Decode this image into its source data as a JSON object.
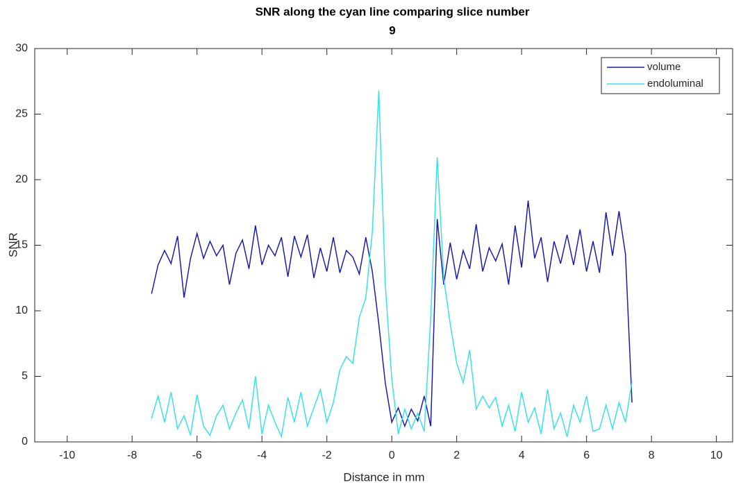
{
  "chart_data": {
    "type": "line",
    "title": [
      "SNR along the cyan line comparing slice number",
      "9"
    ],
    "xlabel": "Distance in mm",
    "ylabel": "SNR",
    "xlim": [
      -11,
      10.5
    ],
    "ylim": [
      0,
      30
    ],
    "xticks": [
      -10,
      -8,
      -6,
      -4,
      -2,
      0,
      2,
      4,
      6,
      8,
      10
    ],
    "yticks": [
      0,
      5,
      10,
      15,
      20,
      25,
      30
    ],
    "grid": false,
    "legend": "northeast",
    "x": [
      -7.4,
      -7.2,
      -7.0,
      -6.8,
      -6.6,
      -6.4,
      -6.2,
      -6.0,
      -5.8,
      -5.6,
      -5.4,
      -5.2,
      -5.0,
      -4.8,
      -4.6,
      -4.4,
      -4.2,
      -4.0,
      -3.8,
      -3.6,
      -3.4,
      -3.2,
      -3.0,
      -2.8,
      -2.6,
      -2.4,
      -2.2,
      -2.0,
      -1.8,
      -1.6,
      -1.4,
      -1.2,
      -1.0,
      -0.8,
      -0.6,
      -0.4,
      -0.2,
      0,
      0.2,
      0.4,
      0.6,
      0.8,
      1.0,
      1.2,
      1.4,
      1.6,
      1.8,
      2.0,
      2.2,
      2.4,
      2.6,
      2.8,
      3.0,
      3.2,
      3.4,
      3.6,
      3.8,
      4.0,
      4.2,
      4.4,
      4.6,
      4.8,
      5.0,
      5.2,
      5.4,
      5.6,
      5.8,
      6.0,
      6.2,
      6.4,
      6.6,
      6.8,
      7.0,
      7.2,
      7.4
    ],
    "series": [
      {
        "name": "volume",
        "color": "#1c1ca8",
        "values": [
          11.3,
          13.5,
          14.6,
          13.6,
          15.7,
          11.0,
          14.0,
          15.9,
          14.0,
          15.3,
          14.2,
          15.0,
          12.0,
          14.4,
          15.4,
          13.2,
          16.5,
          13.5,
          15.0,
          14.2,
          15.6,
          12.6,
          15.7,
          14.1,
          15.8,
          12.5,
          14.8,
          13.0,
          15.6,
          12.9,
          14.6,
          14.1,
          12.8,
          15.6,
          13.0,
          9.0,
          4.5,
          1.5,
          2.6,
          1.2,
          2.5,
          1.6,
          3.5,
          1.2,
          17.0,
          12.0,
          15.2,
          12.4,
          14.6,
          13.2,
          16.6,
          13.0,
          14.8,
          13.8,
          15.1,
          12.0,
          16.5,
          13.3,
          18.4,
          14.0,
          15.6,
          12.2,
          15.3,
          13.6,
          15.8,
          13.5,
          16.2,
          13.0,
          15.3,
          12.9,
          17.5,
          14.2,
          17.6,
          14.3,
          3.0
        ]
      },
      {
        "name": "endoluminal",
        "color": "#38e2e2",
        "values": [
          1.8,
          3.5,
          1.5,
          3.8,
          1.0,
          2.0,
          0.5,
          3.6,
          1.2,
          0.5,
          2.0,
          2.8,
          1.0,
          2.2,
          3.2,
          1.0,
          5.0,
          0.6,
          2.8,
          1.5,
          0.4,
          3.4,
          1.5,
          3.8,
          1.2,
          2.6,
          4.0,
          1.5,
          3.0,
          5.5,
          6.5,
          6.0,
          9.5,
          11.0,
          16.0,
          26.8,
          12.0,
          4.8,
          0.6,
          2.5,
          1.0,
          2.2,
          0.8,
          9.5,
          21.7,
          12.5,
          9.0,
          6.0,
          4.5,
          7.0,
          2.5,
          3.5,
          2.6,
          3.4,
          1.2,
          2.8,
          0.8,
          3.8,
          1.5,
          2.6,
          0.6,
          4.0,
          1.0,
          2.2,
          0.4,
          2.8,
          1.5,
          3.5,
          0.8,
          1.0,
          2.8,
          1.0,
          3.0,
          1.5,
          4.6
        ]
      }
    ]
  }
}
